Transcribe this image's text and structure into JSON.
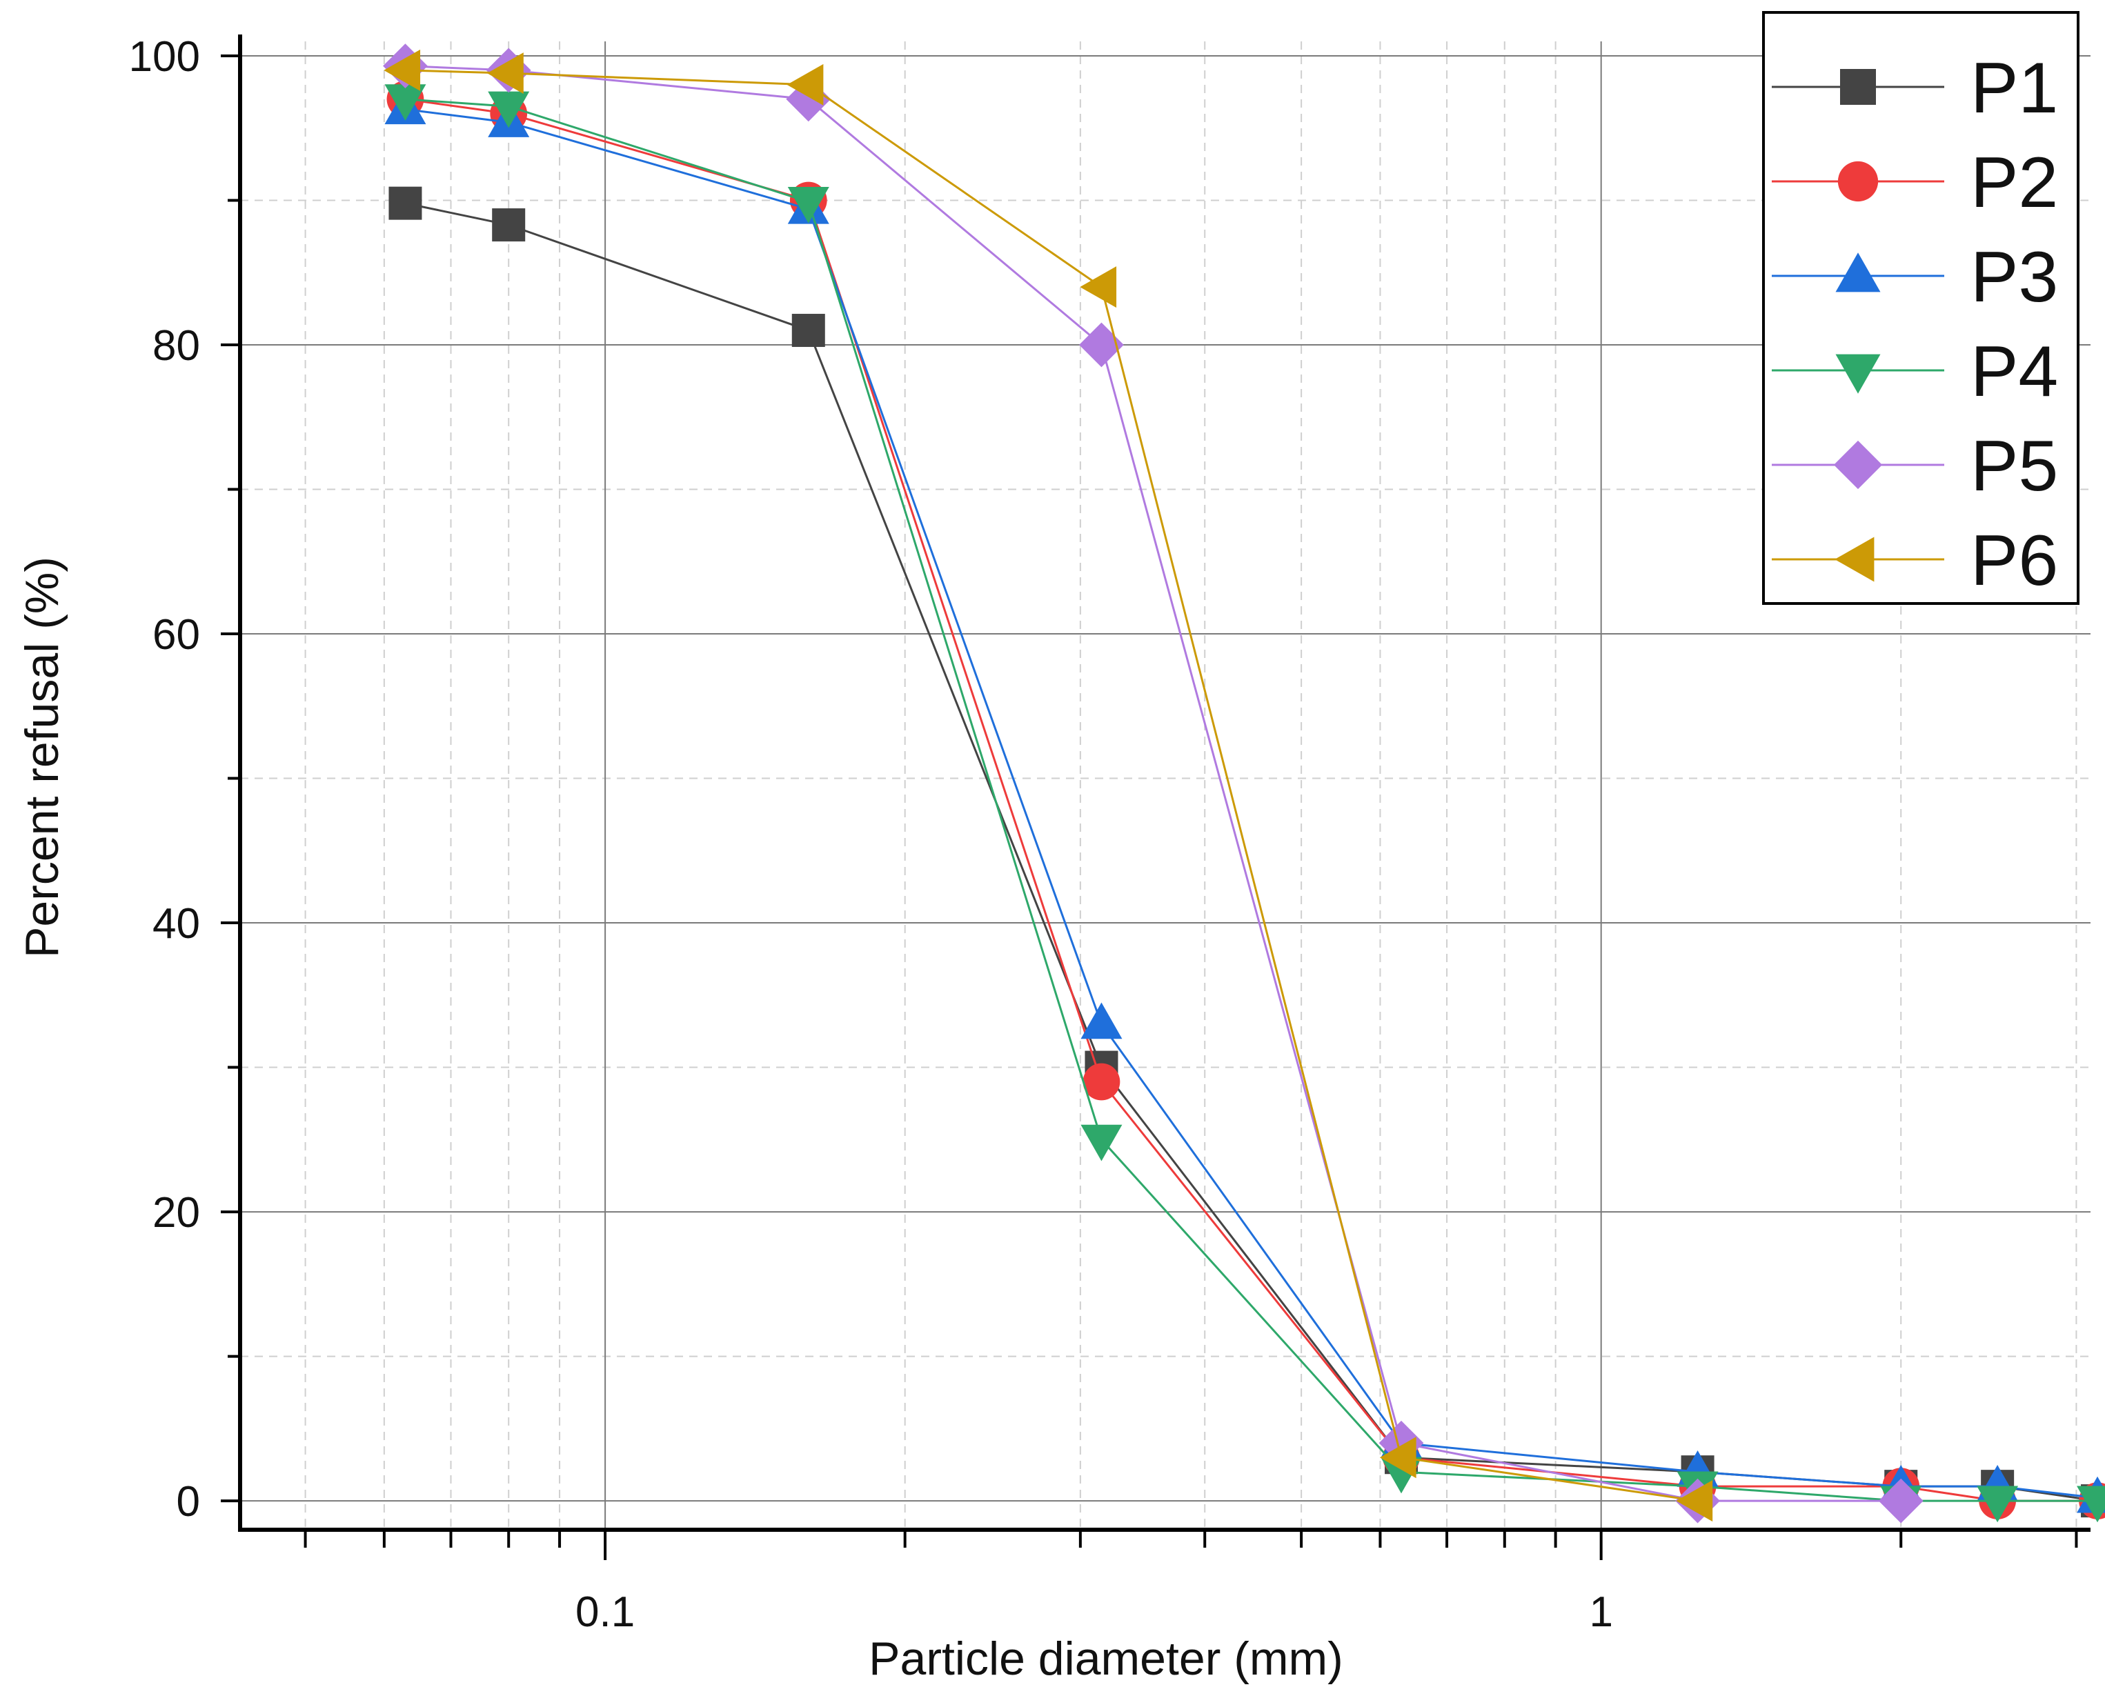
{
  "chart_data": {
    "type": "line",
    "title": "",
    "xlabel": "Particle diameter (mm)",
    "ylabel": "Percent refusal (%)",
    "xscale": "log",
    "xlim": [
      0.043,
      3.1
    ],
    "ylim": [
      -2,
      101
    ],
    "grid": true,
    "legend_position": "top-right",
    "x_ticks": [
      {
        "value": 0.1,
        "label": "0.1"
      },
      {
        "value": 1,
        "label": "1"
      }
    ],
    "y_ticks": [
      {
        "value": 0,
        "label": "0"
      },
      {
        "value": 20,
        "label": "20"
      },
      {
        "value": 40,
        "label": "40"
      },
      {
        "value": 60,
        "label": "60"
      },
      {
        "value": 80,
        "label": "80"
      },
      {
        "value": 100,
        "label": "100"
      }
    ],
    "x": [
      0.063,
      0.08,
      0.16,
      0.315,
      0.63,
      1.25,
      2.0,
      2.5,
      3.15
    ],
    "series": [
      {
        "name": "P1",
        "color": "#444444",
        "marker": "square",
        "values": [
          89.8,
          88.3,
          81.0,
          30.0,
          3.0,
          2.0,
          1.0,
          1.0,
          0.0
        ]
      },
      {
        "name": "P2",
        "color": "#ee3b3b",
        "marker": "circle",
        "values": [
          97.0,
          96.0,
          90.0,
          29.0,
          3.0,
          1.0,
          1.0,
          0.0,
          0.0
        ]
      },
      {
        "name": "P3",
        "color": "#1f6fdb",
        "marker": "triangle-up",
        "values": [
          96.3,
          95.4,
          89.4,
          33.0,
          4.0,
          2.0,
          1.0,
          1.0,
          0.2
        ]
      },
      {
        "name": "P4",
        "color": "#2ea86a",
        "marker": "triangle-down",
        "values": [
          97.0,
          96.5,
          89.9,
          25.0,
          2.0,
          1.0,
          0.0,
          0.0,
          0.0
        ]
      },
      {
        "name": "P5",
        "color": "#b07ae0",
        "marker": "diamond",
        "values": [
          99.3,
          99.0,
          97.0,
          80.0,
          4.0,
          0.0,
          0.0,
          null,
          null
        ]
      },
      {
        "name": "P6",
        "color": "#cc9a06",
        "marker": "triangle-left",
        "values": [
          99.0,
          98.8,
          98.0,
          84.0,
          3.0,
          0.0,
          null,
          null,
          null
        ]
      }
    ]
  }
}
